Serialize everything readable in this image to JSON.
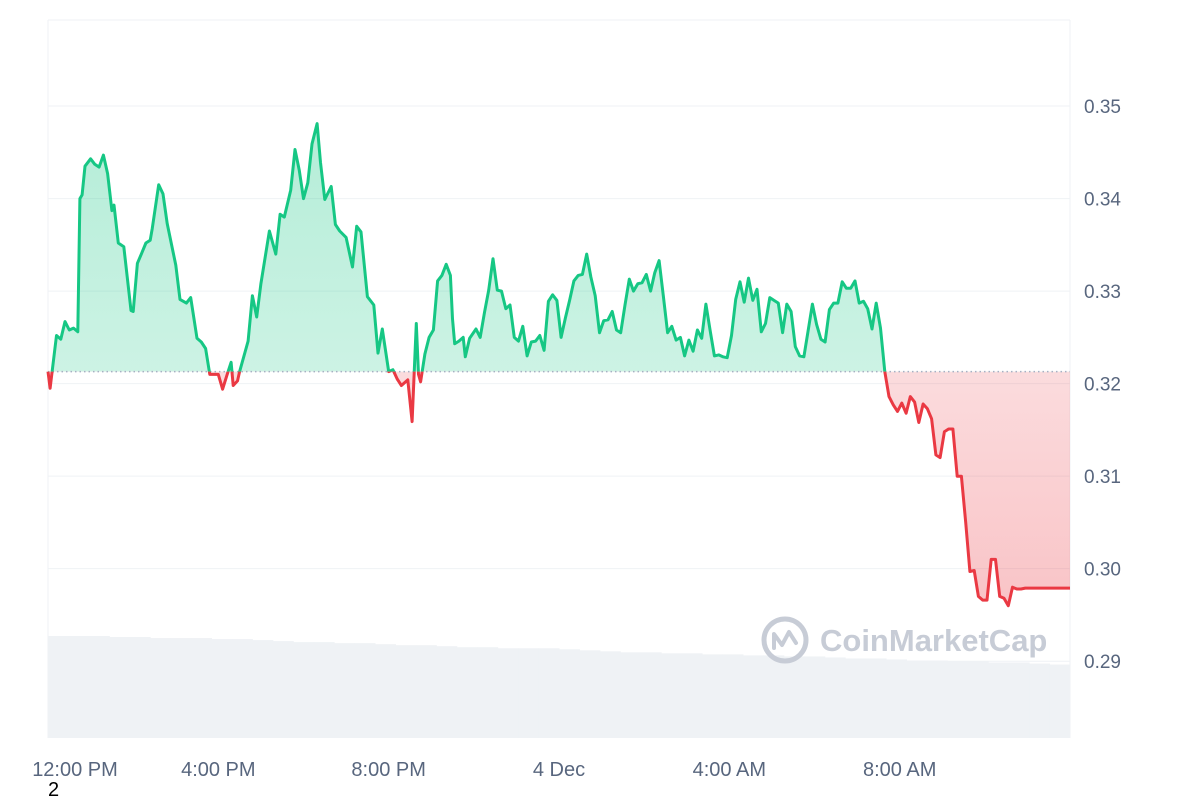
{
  "watermark": {
    "text": "CoinMarketCap",
    "icon": "coinmarketcap-logo-icon"
  },
  "page_marker": "2",
  "colors": {
    "up_line": "#16c784",
    "down_line": "#ea3943",
    "up_fill": "#d9f5e8",
    "down_fill": "#f8c9cd",
    "grid": "#eff2f5",
    "axis_text": "#58667e",
    "volume": "#eff2f5",
    "baseline_dots": "#a6b0c3"
  },
  "chart_data": {
    "type": "area",
    "baseline": 0.3213,
    "ylim": [
      0.2817,
      0.3593
    ],
    "y_ticks": [
      0.29,
      0.3,
      0.31,
      0.32,
      0.33,
      0.34,
      0.35
    ],
    "y_tick_labels": [
      "0.29",
      "0.30",
      "0.31",
      "0.32",
      "0.33",
      "0.34",
      "0.35"
    ],
    "x_tick_labels": [
      "12:00 PM",
      "4:00 PM",
      "8:00 PM",
      "4 Dec",
      "4:00 AM",
      "8:00 AM"
    ],
    "x_tick_hours": [
      0,
      4,
      8,
      12,
      16,
      20
    ],
    "xlim_hours": [
      0,
      24
    ],
    "grid": true,
    "series": [
      {
        "values": [
          [
            0.0,
            0.3213
          ],
          [
            0.05,
            0.3195
          ],
          [
            0.2,
            0.3252
          ],
          [
            0.3,
            0.3248
          ],
          [
            0.4,
            0.3267
          ],
          [
            0.5,
            0.3258
          ],
          [
            0.6,
            0.326
          ],
          [
            0.7,
            0.3256
          ],
          [
            0.75,
            0.34
          ],
          [
            0.8,
            0.3404
          ],
          [
            0.87,
            0.3435
          ],
          [
            1.0,
            0.3443
          ],
          [
            1.1,
            0.3437
          ],
          [
            1.2,
            0.3434
          ],
          [
            1.3,
            0.3447
          ],
          [
            1.4,
            0.3427
          ],
          [
            1.5,
            0.3387
          ],
          [
            1.55,
            0.3393
          ],
          [
            1.65,
            0.3352
          ],
          [
            1.78,
            0.3348
          ],
          [
            1.95,
            0.3279
          ],
          [
            2.0,
            0.3278
          ],
          [
            2.1,
            0.333
          ],
          [
            2.2,
            0.3341
          ],
          [
            2.3,
            0.3352
          ],
          [
            2.4,
            0.3355
          ],
          [
            2.45,
            0.3368
          ],
          [
            2.6,
            0.3415
          ],
          [
            2.7,
            0.3405
          ],
          [
            2.8,
            0.3373
          ],
          [
            3.0,
            0.3328
          ],
          [
            3.1,
            0.3291
          ],
          [
            3.25,
            0.3287
          ],
          [
            3.35,
            0.3293
          ],
          [
            3.5,
            0.3249
          ],
          [
            3.6,
            0.3245
          ],
          [
            3.7,
            0.3238
          ],
          [
            3.8,
            0.321
          ],
          [
            4.0,
            0.321
          ],
          [
            4.1,
            0.3194
          ],
          [
            4.2,
            0.3209
          ],
          [
            4.3,
            0.3223
          ],
          [
            4.35,
            0.3198
          ],
          [
            4.45,
            0.3203
          ],
          [
            4.5,
            0.3213
          ],
          [
            4.7,
            0.3246
          ],
          [
            4.8,
            0.3295
          ],
          [
            4.9,
            0.3272
          ],
          [
            5.0,
            0.3308
          ],
          [
            5.2,
            0.3365
          ],
          [
            5.35,
            0.334
          ],
          [
            5.45,
            0.3383
          ],
          [
            5.55,
            0.338
          ],
          [
            5.7,
            0.3409
          ],
          [
            5.8,
            0.3453
          ],
          [
            5.9,
            0.3431
          ],
          [
            6.0,
            0.34
          ],
          [
            6.1,
            0.3417
          ],
          [
            6.2,
            0.3459
          ],
          [
            6.32,
            0.3481
          ],
          [
            6.4,
            0.3439
          ],
          [
            6.5,
            0.3399
          ],
          [
            6.65,
            0.3413
          ],
          [
            6.75,
            0.3372
          ],
          [
            6.85,
            0.3365
          ],
          [
            7.0,
            0.3358
          ],
          [
            7.15,
            0.3326
          ],
          [
            7.25,
            0.337
          ],
          [
            7.35,
            0.3364
          ],
          [
            7.5,
            0.3294
          ],
          [
            7.65,
            0.3285
          ],
          [
            7.75,
            0.3233
          ],
          [
            7.85,
            0.3259
          ],
          [
            8.0,
            0.3213
          ],
          [
            8.1,
            0.3215
          ],
          [
            8.2,
            0.3205
          ],
          [
            8.3,
            0.3198
          ],
          [
            8.45,
            0.3204
          ],
          [
            8.55,
            0.3159
          ],
          [
            8.65,
            0.3265
          ],
          [
            8.7,
            0.321
          ],
          [
            8.75,
            0.3202
          ],
          [
            8.85,
            0.3232
          ],
          [
            8.95,
            0.325
          ],
          [
            9.05,
            0.3258
          ],
          [
            9.15,
            0.3311
          ],
          [
            9.25,
            0.3317
          ],
          [
            9.35,
            0.3329
          ],
          [
            9.45,
            0.3317
          ],
          [
            9.5,
            0.327
          ],
          [
            9.55,
            0.3243
          ],
          [
            9.65,
            0.3246
          ],
          [
            9.75,
            0.325
          ],
          [
            9.8,
            0.3229
          ],
          [
            9.9,
            0.3249
          ],
          [
            10.05,
            0.3259
          ],
          [
            10.15,
            0.325
          ],
          [
            10.25,
            0.3277
          ],
          [
            10.35,
            0.3301
          ],
          [
            10.45,
            0.3335
          ],
          [
            10.55,
            0.3301
          ],
          [
            10.65,
            0.33
          ],
          [
            10.75,
            0.3281
          ],
          [
            10.85,
            0.3285
          ],
          [
            10.95,
            0.325
          ],
          [
            11.05,
            0.3246
          ],
          [
            11.15,
            0.3262
          ],
          [
            11.25,
            0.323
          ],
          [
            11.35,
            0.3245
          ],
          [
            11.45,
            0.3246
          ],
          [
            11.55,
            0.3252
          ],
          [
            11.65,
            0.3236
          ],
          [
            11.75,
            0.3289
          ],
          [
            11.85,
            0.3296
          ],
          [
            11.95,
            0.329
          ],
          [
            12.05,
            0.325
          ],
          [
            12.15,
            0.3271
          ],
          [
            12.25,
            0.329
          ],
          [
            12.35,
            0.3311
          ],
          [
            12.45,
            0.3317
          ],
          [
            12.55,
            0.3318
          ],
          [
            12.65,
            0.334
          ],
          [
            12.75,
            0.3315
          ],
          [
            12.85,
            0.3295
          ],
          [
            12.95,
            0.3255
          ],
          [
            13.05,
            0.3268
          ],
          [
            13.15,
            0.3269
          ],
          [
            13.25,
            0.3278
          ],
          [
            13.35,
            0.3258
          ],
          [
            13.45,
            0.3255
          ],
          [
            13.55,
            0.3285
          ],
          [
            13.65,
            0.3313
          ],
          [
            13.75,
            0.33
          ],
          [
            13.85,
            0.3308
          ],
          [
            13.95,
            0.3309
          ],
          [
            14.05,
            0.3318
          ],
          [
            14.15,
            0.33
          ],
          [
            14.25,
            0.332
          ],
          [
            14.35,
            0.3333
          ],
          [
            14.45,
            0.3295
          ],
          [
            14.55,
            0.3255
          ],
          [
            14.65,
            0.3262
          ],
          [
            14.75,
            0.3247
          ],
          [
            14.85,
            0.325
          ],
          [
            14.95,
            0.323
          ],
          [
            15.05,
            0.3247
          ],
          [
            15.15,
            0.3235
          ],
          [
            15.25,
            0.3258
          ],
          [
            15.35,
            0.3249
          ],
          [
            15.45,
            0.3286
          ],
          [
            15.55,
            0.3257
          ],
          [
            15.65,
            0.323
          ],
          [
            15.75,
            0.3231
          ],
          [
            15.85,
            0.3229
          ],
          [
            15.95,
            0.3228
          ],
          [
            16.05,
            0.3252
          ],
          [
            16.15,
            0.3291
          ],
          [
            16.25,
            0.331
          ],
          [
            16.35,
            0.3288
          ],
          [
            16.45,
            0.3314
          ],
          [
            16.55,
            0.329
          ],
          [
            16.65,
            0.3302
          ],
          [
            16.75,
            0.3256
          ],
          [
            16.85,
            0.3265
          ],
          [
            16.95,
            0.3293
          ],
          [
            17.05,
            0.329
          ],
          [
            17.15,
            0.3287
          ],
          [
            17.25,
            0.3255
          ],
          [
            17.35,
            0.3286
          ],
          [
            17.45,
            0.3278
          ],
          [
            17.55,
            0.324
          ],
          [
            17.65,
            0.323
          ],
          [
            17.75,
            0.3229
          ],
          [
            17.85,
            0.3257
          ],
          [
            17.95,
            0.3286
          ],
          [
            18.05,
            0.3264
          ],
          [
            18.15,
            0.3248
          ],
          [
            18.25,
            0.3245
          ],
          [
            18.35,
            0.328
          ],
          [
            18.45,
            0.3287
          ],
          [
            18.55,
            0.3287
          ],
          [
            18.65,
            0.331
          ],
          [
            18.75,
            0.3303
          ],
          [
            18.85,
            0.3303
          ],
          [
            18.95,
            0.3311
          ],
          [
            19.05,
            0.3287
          ],
          [
            19.15,
            0.3289
          ],
          [
            19.25,
            0.3281
          ],
          [
            19.35,
            0.3259
          ],
          [
            19.45,
            0.3287
          ],
          [
            19.55,
            0.326
          ],
          [
            19.65,
            0.3213
          ],
          [
            19.75,
            0.3186
          ],
          [
            19.85,
            0.3177
          ],
          [
            19.95,
            0.317
          ],
          [
            20.05,
            0.3179
          ],
          [
            20.15,
            0.3168
          ],
          [
            20.25,
            0.3186
          ],
          [
            20.35,
            0.318
          ],
          [
            20.45,
            0.3158
          ],
          [
            20.55,
            0.3178
          ],
          [
            20.65,
            0.3173
          ],
          [
            20.75,
            0.3162
          ],
          [
            20.85,
            0.3123
          ],
          [
            20.95,
            0.312
          ],
          [
            21.05,
            0.3148
          ],
          [
            21.15,
            0.3151
          ],
          [
            21.25,
            0.3151
          ],
          [
            21.35,
            0.31
          ],
          [
            21.45,
            0.31
          ],
          [
            21.55,
            0.305
          ],
          [
            21.65,
            0.2997
          ],
          [
            21.75,
            0.2998
          ],
          [
            21.85,
            0.297
          ],
          [
            21.95,
            0.2966
          ],
          [
            22.05,
            0.2966
          ],
          [
            22.15,
            0.301
          ],
          [
            22.25,
            0.301
          ],
          [
            22.35,
            0.297
          ],
          [
            22.45,
            0.2968
          ],
          [
            22.55,
            0.296
          ],
          [
            22.65,
            0.298
          ],
          [
            22.75,
            0.2978
          ],
          [
            22.85,
            0.2978
          ],
          [
            22.95,
            0.2979
          ],
          [
            24.0,
            0.2979
          ]
        ]
      }
    ],
    "volume_relative": [
      1.0,
      1.0,
      1.0,
      0.99,
      0.99,
      0.98,
      0.98,
      0.98,
      0.97,
      0.97,
      0.96,
      0.95,
      0.94,
      0.94,
      0.93,
      0.93,
      0.92,
      0.91,
      0.91,
      0.9,
      0.89,
      0.89,
      0.88,
      0.88,
      0.88,
      0.87,
      0.86,
      0.85,
      0.84,
      0.84,
      0.83,
      0.83,
      0.82,
      0.82,
      0.81,
      0.81,
      0.8,
      0.8,
      0.79,
      0.78,
      0.78,
      0.77,
      0.76,
      0.76,
      0.75,
      0.75,
      0.74,
      0.74,
      0.73,
      0.72
    ]
  }
}
